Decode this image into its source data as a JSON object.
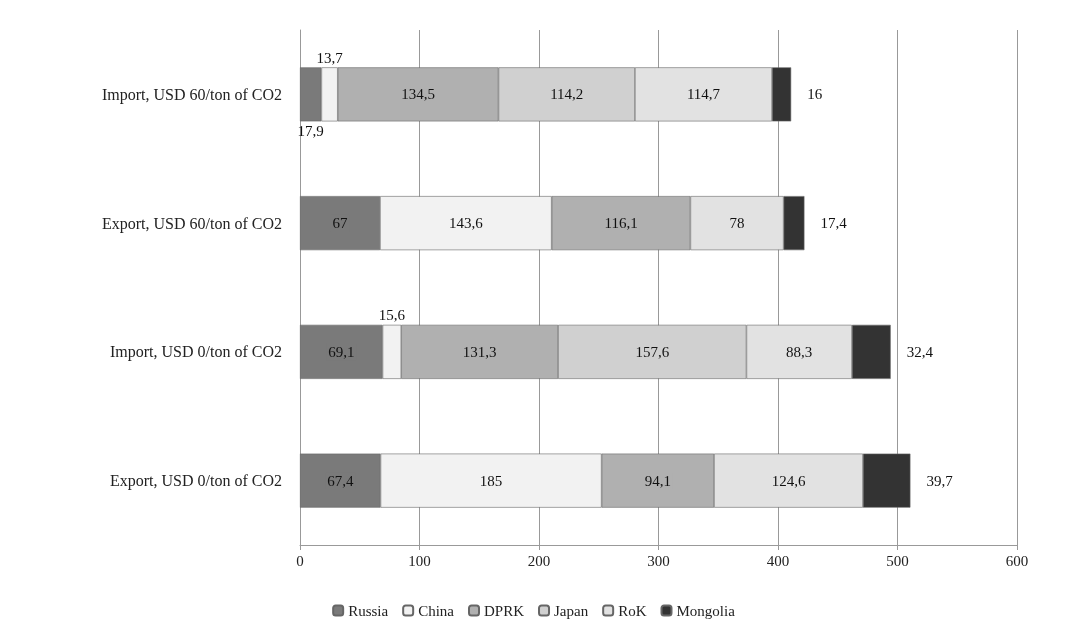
{
  "chart_data": {
    "type": "bar",
    "orientation": "horizontal",
    "stacked": true,
    "categories": [
      "Import, USD 60/ton of CO2",
      "Export, USD 60/ton of CO2",
      "Import, USD 0/ton of CO2",
      "Export, USD 0/ton of CO2"
    ],
    "series": [
      {
        "name": "Russia",
        "color": "#7a7a7a",
        "values": [
          17.9,
          67,
          69.1,
          67.4
        ],
        "value_labels": [
          "17,9",
          "67",
          "69,1",
          "67,4"
        ]
      },
      {
        "name": "China",
        "color": "#f2f2f2",
        "values": [
          13.7,
          143.6,
          15.6,
          185
        ],
        "value_labels": [
          "13,7",
          "143,6",
          "15,6",
          "185"
        ]
      },
      {
        "name": "DPRK",
        "color": "#b0b0b0",
        "values": [
          134.5,
          116.1,
          131.3,
          94.1
        ],
        "value_labels": [
          "134,5",
          "116,1",
          "131,3",
          "94,1"
        ]
      },
      {
        "name": "Japan",
        "color": "#d0d0d0",
        "values": [
          114.2,
          null,
          157.6,
          null
        ],
        "value_labels": [
          "114,2",
          null,
          "157,6",
          null
        ]
      },
      {
        "name": "RoK",
        "color": "#e2e2e2",
        "values": [
          114.7,
          78,
          88.3,
          124.6
        ],
        "value_labels": [
          "114,7",
          "78",
          "88,3",
          "124,6"
        ]
      },
      {
        "name": "Mongolia",
        "color": "#333333",
        "values": [
          16,
          17.4,
          32.4,
          39.7
        ],
        "value_labels": [
          "16",
          "17,4",
          "32,4",
          "39,7"
        ]
      }
    ],
    "xlim": [
      0,
      600
    ],
    "xticks": [
      0,
      100,
      200,
      300,
      400,
      500,
      600
    ],
    "grid": "x",
    "legend": "bottom"
  }
}
